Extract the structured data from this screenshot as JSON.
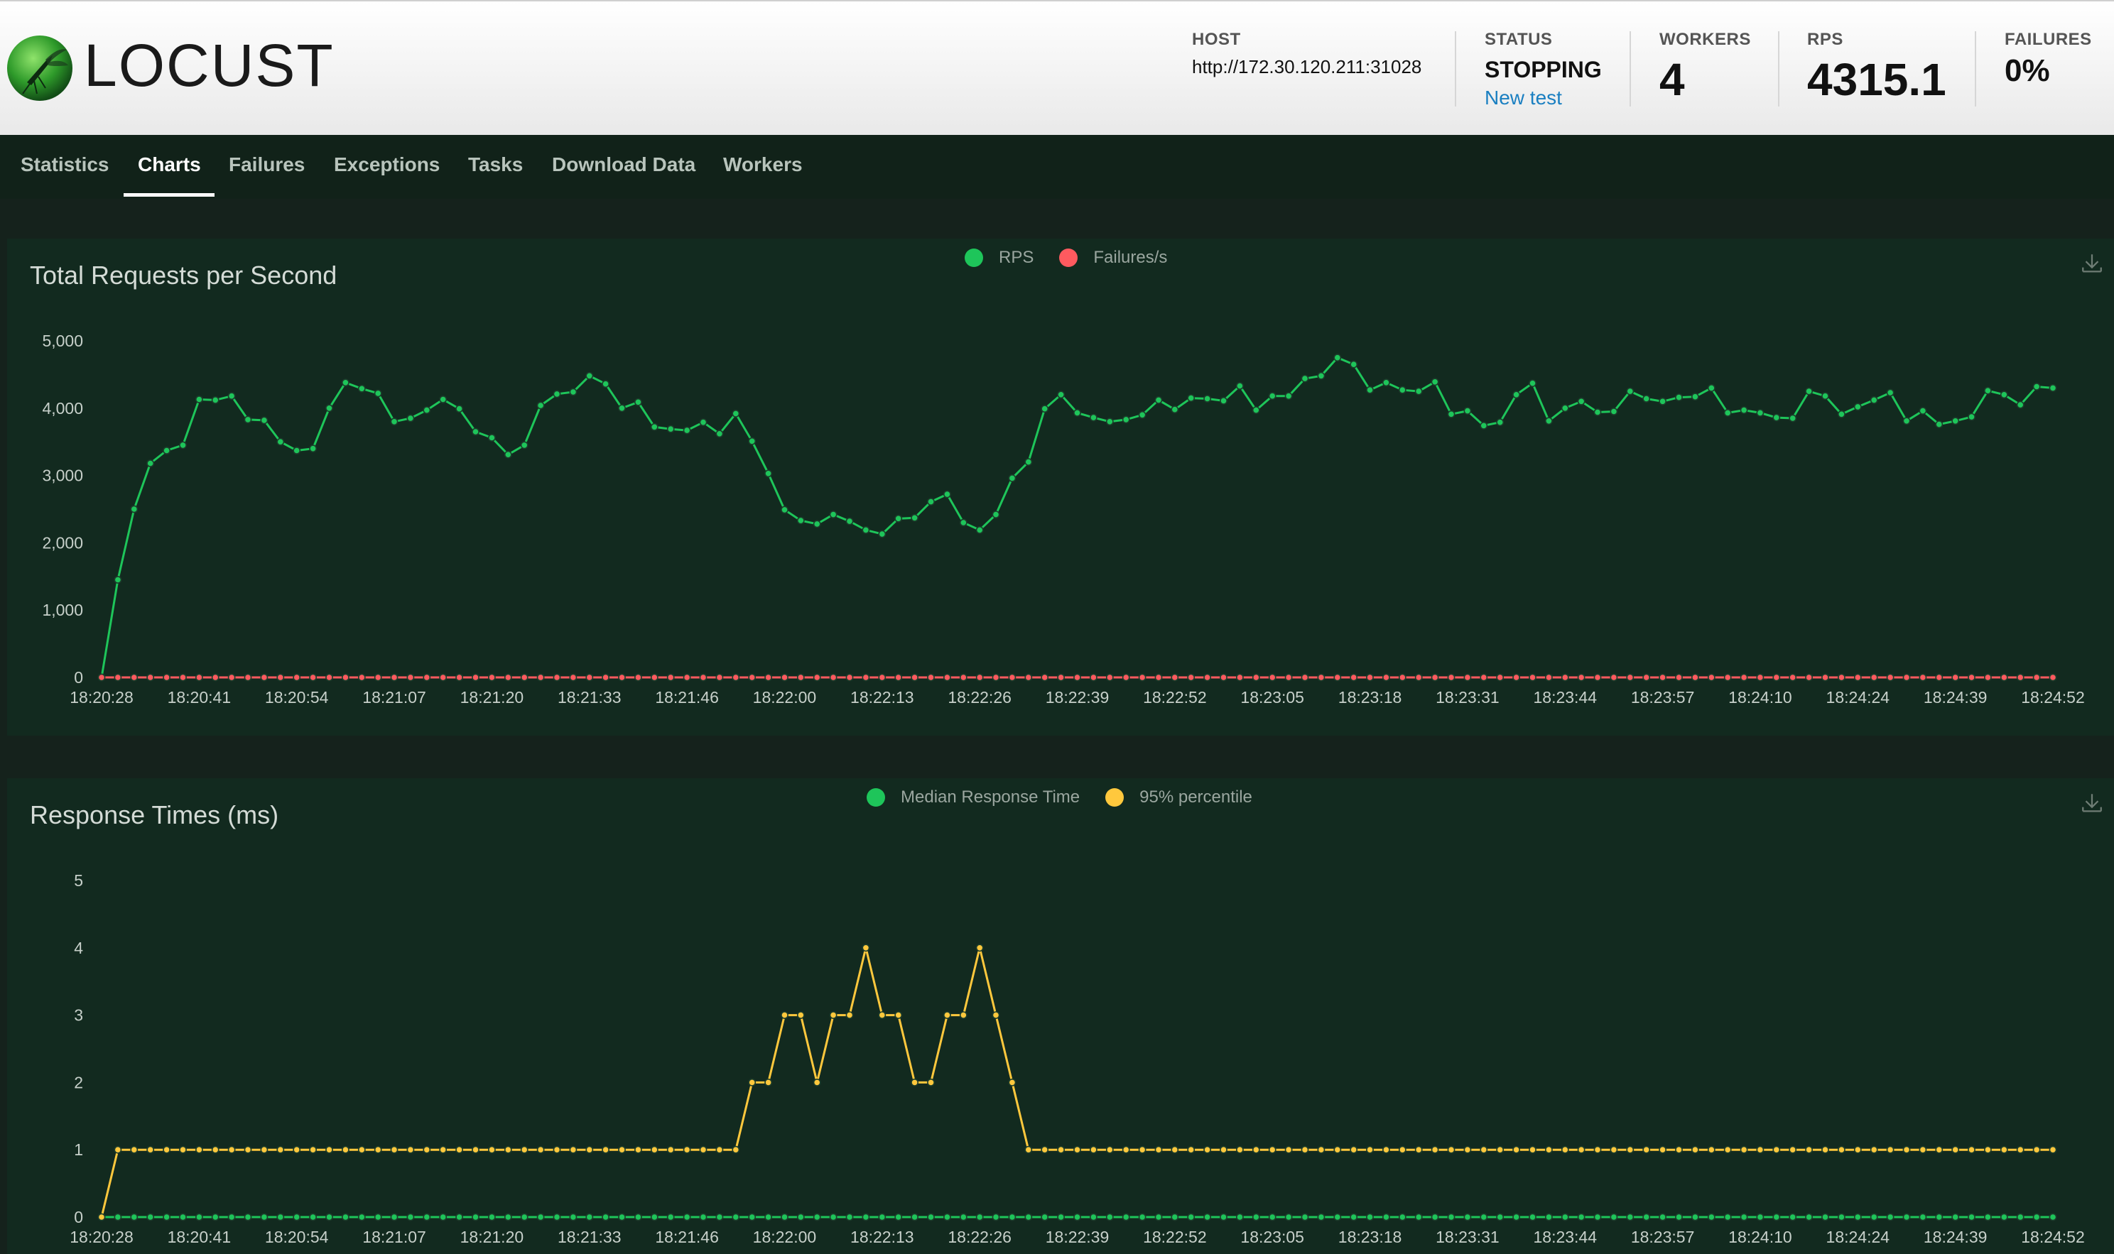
{
  "app": {
    "logo_text": "LOCUST"
  },
  "header": {
    "host": {
      "label": "HOST",
      "value": "http://172.30.120.211:31028"
    },
    "status": {
      "label": "STATUS",
      "value": "STOPPING",
      "link": "New test"
    },
    "workers": {
      "label": "WORKERS",
      "value": "4"
    },
    "rps": {
      "label": "RPS",
      "value": "4315.1"
    },
    "failures": {
      "label": "FAILURES",
      "value": "0%"
    }
  },
  "nav": {
    "tabs": [
      {
        "label": "Statistics"
      },
      {
        "label": "Charts",
        "active": true
      },
      {
        "label": "Failures"
      },
      {
        "label": "Exceptions"
      },
      {
        "label": "Tasks"
      },
      {
        "label": "Download Data"
      },
      {
        "label": "Workers"
      }
    ]
  },
  "colors": {
    "rps": "#1ec55a",
    "failures": "#ff5a5f",
    "median": "#1ec55a",
    "p95": "#ffc83d",
    "grid_text": "#c7d0ca"
  },
  "chart_data": [
    {
      "type": "line",
      "title": "Total Requests per Second",
      "x_ticks": [
        "18:20:28",
        "18:20:41",
        "18:20:54",
        "18:21:07",
        "18:21:20",
        "18:21:33",
        "18:21:46",
        "18:22:00",
        "18:22:13",
        "18:22:26",
        "18:22:39",
        "18:22:52",
        "18:23:05",
        "18:23:18",
        "18:23:31",
        "18:23:44",
        "18:23:57",
        "18:24:10",
        "18:24:24",
        "18:24:39",
        "18:24:52"
      ],
      "y_ticks": [
        "0",
        "1,000",
        "2,000",
        "3,000",
        "4,000",
        "5,000"
      ],
      "ylim": [
        0,
        5000
      ],
      "legend_position": "top-center",
      "series": [
        {
          "name": "RPS",
          "color": "#1ec55a",
          "values": [
            0,
            1450,
            2500,
            3180,
            3370,
            3450,
            4130,
            4120,
            4180,
            3830,
            3820,
            3500,
            3370,
            3400,
            4000,
            4380,
            4290,
            4220,
            3800,
            3850,
            3970,
            4130,
            3990,
            3650,
            3560,
            3310,
            3450,
            4040,
            4210,
            4240,
            4480,
            4360,
            4000,
            4090,
            3720,
            3690,
            3670,
            3790,
            3620,
            3920,
            3510,
            3030,
            2490,
            2330,
            2280,
            2420,
            2320,
            2190,
            2130,
            2360,
            2370,
            2610,
            2720,
            2300,
            2190,
            2420,
            2960,
            3200,
            3990,
            4200,
            3930,
            3860,
            3800,
            3830,
            3900,
            4120,
            3980,
            4150,
            4140,
            4110,
            4330,
            3970,
            4180,
            4180,
            4440,
            4480,
            4750,
            4650,
            4270,
            4380,
            4270,
            4250,
            4390,
            3910,
            3960,
            3740,
            3790,
            4200,
            4370,
            3810,
            4000,
            4100,
            3940,
            3950,
            4250,
            4140,
            4100,
            4160,
            4170,
            4300,
            3930,
            3970,
            3930,
            3860,
            3850,
            4250,
            4180,
            3910,
            4020,
            4120,
            4230,
            3810,
            3960,
            3760,
            3810,
            3870,
            4260,
            4200,
            4050,
            4320,
            4300
          ]
        },
        {
          "name": "Failures/s",
          "color": "#ff5a5f",
          "constant": 0,
          "points": 121
        }
      ]
    },
    {
      "type": "line",
      "title": "Response Times (ms)",
      "x_ticks": [
        "18:20:28",
        "18:20:41",
        "18:20:54",
        "18:21:07",
        "18:21:20",
        "18:21:33",
        "18:21:46",
        "18:22:00",
        "18:22:13",
        "18:22:26",
        "18:22:39",
        "18:22:52",
        "18:23:05",
        "18:23:18",
        "18:23:31",
        "18:23:44",
        "18:23:57",
        "18:24:10",
        "18:24:24",
        "18:24:39",
        "18:24:52"
      ],
      "y_ticks": [
        "0",
        "1",
        "2",
        "3",
        "4",
        "5"
      ],
      "ylim": [
        0,
        5
      ],
      "legend_position": "top-center",
      "series": [
        {
          "name": "Median Response Time",
          "color": "#1ec55a",
          "constant": 0,
          "points": 121
        },
        {
          "name": "95% percentile",
          "color": "#ffc83d",
          "values": [
            0,
            1,
            1,
            1,
            1,
            1,
            1,
            1,
            1,
            1,
            1,
            1,
            1,
            1,
            1,
            1,
            1,
            1,
            1,
            1,
            1,
            1,
            1,
            1,
            1,
            1,
            1,
            1,
            1,
            1,
            1,
            1,
            1,
            1,
            1,
            1,
            1,
            1,
            1,
            1,
            2,
            2,
            3,
            3,
            2,
            3,
            3,
            4,
            3,
            3,
            2,
            2,
            3,
            3,
            4,
            3,
            2,
            1,
            1,
            1,
            1,
            1,
            1,
            1,
            1,
            1,
            1,
            1,
            1,
            1,
            1,
            1,
            1,
            1,
            1,
            1,
            1,
            1,
            1,
            1,
            1,
            1,
            1,
            1,
            1,
            1,
            1,
            1,
            1,
            1,
            1,
            1,
            1,
            1,
            1,
            1,
            1,
            1,
            1,
            1,
            1,
            1,
            1,
            1,
            1,
            1,
            1,
            1,
            1,
            1,
            1,
            1,
            1,
            1,
            1,
            1,
            1,
            1,
            1,
            1,
            1
          ]
        }
      ]
    }
  ]
}
